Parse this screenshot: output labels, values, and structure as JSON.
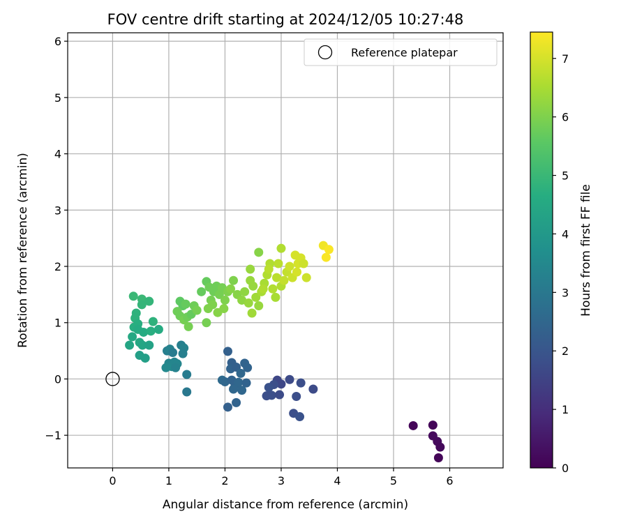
{
  "chart_data": {
    "type": "scatter",
    "title": "FOV centre drift starting at 2024/12/05 10:27:48",
    "xlabel": "Angular distance from reference (arcmin)",
    "ylabel": "Rotation from reference (arcmin)",
    "xlim": [
      -0.8,
      6.95
    ],
    "ylim": [
      -1.58,
      6.15
    ],
    "xticks": [
      0,
      1,
      2,
      3,
      4,
      5,
      6
    ],
    "yticks": [
      -1,
      0,
      1,
      2,
      3,
      4,
      5,
      6
    ],
    "xtick_labels": [
      "0",
      "1",
      "2",
      "3",
      "4",
      "5",
      "6"
    ],
    "ytick_labels": [
      "−1",
      "0",
      "1",
      "2",
      "3",
      "4",
      "5",
      "6"
    ],
    "grid": true,
    "legend": {
      "position": "top-right",
      "entries": [
        "Reference platepar"
      ]
    },
    "reference_point": {
      "x": 0,
      "y": 0,
      "label": "Reference platepar"
    },
    "colorbar": {
      "label": "Hours from first FF file",
      "colormap": "viridis",
      "range": [
        0,
        7.45
      ],
      "ticks": [
        0,
        1,
        2,
        3,
        4,
        5,
        6,
        7
      ],
      "tick_labels": [
        "0",
        "1",
        "2",
        "3",
        "4",
        "5",
        "6",
        "7"
      ]
    },
    "points": [
      {
        "x": 5.35,
        "y": -0.83,
        "c": 0.1
      },
      {
        "x": 5.7,
        "y": -0.82,
        "c": 0.1
      },
      {
        "x": 5.7,
        "y": -1.01,
        "c": 0.2
      },
      {
        "x": 5.78,
        "y": -1.11,
        "c": 0.2
      },
      {
        "x": 5.83,
        "y": -1.21,
        "c": 0.15
      },
      {
        "x": 5.8,
        "y": -1.4,
        "c": 0.1
      },
      {
        "x": 2.93,
        "y": -0.02,
        "c": 1.6
      },
      {
        "x": 3.0,
        "y": -0.09,
        "c": 1.6
      },
      {
        "x": 3.15,
        "y": -0.01,
        "c": 1.7
      },
      {
        "x": 3.35,
        "y": -0.07,
        "c": 1.8
      },
      {
        "x": 3.57,
        "y": -0.18,
        "c": 1.7
      },
      {
        "x": 2.87,
        "y": -0.1,
        "c": 1.8
      },
      {
        "x": 2.78,
        "y": -0.15,
        "c": 1.9
      },
      {
        "x": 2.74,
        "y": -0.3,
        "c": 1.8
      },
      {
        "x": 2.83,
        "y": -0.29,
        "c": 1.8
      },
      {
        "x": 2.97,
        "y": -0.28,
        "c": 1.7
      },
      {
        "x": 3.27,
        "y": -0.31,
        "c": 1.8
      },
      {
        "x": 3.22,
        "y": -0.61,
        "c": 1.8
      },
      {
        "x": 3.33,
        "y": -0.67,
        "c": 1.9
      },
      {
        "x": 2.05,
        "y": 0.49,
        "c": 2.3
      },
      {
        "x": 2.12,
        "y": 0.29,
        "c": 2.3
      },
      {
        "x": 2.1,
        "y": 0.18,
        "c": 2.4
      },
      {
        "x": 2.2,
        "y": 0.21,
        "c": 2.3
      },
      {
        "x": 2.28,
        "y": 0.1,
        "c": 2.5
      },
      {
        "x": 2.35,
        "y": 0.28,
        "c": 2.4
      },
      {
        "x": 2.4,
        "y": 0.2,
        "c": 2.4
      },
      {
        "x": 1.95,
        "y": -0.02,
        "c": 2.6
      },
      {
        "x": 2.0,
        "y": -0.05,
        "c": 2.5
      },
      {
        "x": 2.12,
        "y": -0.02,
        "c": 2.4
      },
      {
        "x": 2.18,
        "y": -0.1,
        "c": 2.4
      },
      {
        "x": 2.24,
        "y": -0.06,
        "c": 2.5
      },
      {
        "x": 2.3,
        "y": -0.2,
        "c": 2.5
      },
      {
        "x": 2.38,
        "y": -0.07,
        "c": 2.4
      },
      {
        "x": 2.15,
        "y": -0.18,
        "c": 2.5
      },
      {
        "x": 2.2,
        "y": -0.42,
        "c": 2.4
      },
      {
        "x": 2.05,
        "y": -0.5,
        "c": 2.3
      },
      {
        "x": 0.97,
        "y": 0.5,
        "c": 3.2
      },
      {
        "x": 1.02,
        "y": 0.53,
        "c": 3.3
      },
      {
        "x": 1.07,
        "y": 0.47,
        "c": 3.1
      },
      {
        "x": 1.0,
        "y": 0.28,
        "c": 3.4
      },
      {
        "x": 1.05,
        "y": 0.22,
        "c": 3.5
      },
      {
        "x": 1.1,
        "y": 0.3,
        "c": 3.4
      },
      {
        "x": 1.15,
        "y": 0.27,
        "c": 3.4
      },
      {
        "x": 0.95,
        "y": 0.2,
        "c": 3.5
      },
      {
        "x": 1.12,
        "y": 0.2,
        "c": 3.3
      },
      {
        "x": 1.22,
        "y": 0.6,
        "c": 3.2
      },
      {
        "x": 1.27,
        "y": 0.55,
        "c": 3.3
      },
      {
        "x": 1.25,
        "y": 0.45,
        "c": 3.2
      },
      {
        "x": 1.32,
        "y": 0.08,
        "c": 3.1
      },
      {
        "x": 1.32,
        "y": -0.23,
        "c": 3.0
      },
      {
        "x": 0.37,
        "y": 1.47,
        "c": 5.0
      },
      {
        "x": 0.52,
        "y": 1.42,
        "c": 5.0
      },
      {
        "x": 0.52,
        "y": 1.32,
        "c": 4.9
      },
      {
        "x": 0.65,
        "y": 1.38,
        "c": 4.9
      },
      {
        "x": 0.42,
        "y": 1.17,
        "c": 4.8
      },
      {
        "x": 0.4,
        "y": 1.08,
        "c": 4.8
      },
      {
        "x": 0.45,
        "y": 0.98,
        "c": 4.7
      },
      {
        "x": 0.38,
        "y": 0.92,
        "c": 4.7
      },
      {
        "x": 0.45,
        "y": 0.88,
        "c": 4.6
      },
      {
        "x": 0.55,
        "y": 0.83,
        "c": 4.6
      },
      {
        "x": 0.68,
        "y": 0.85,
        "c": 4.7
      },
      {
        "x": 0.72,
        "y": 1.02,
        "c": 4.8
      },
      {
        "x": 0.82,
        "y": 0.88,
        "c": 4.6
      },
      {
        "x": 0.35,
        "y": 0.75,
        "c": 4.5
      },
      {
        "x": 0.3,
        "y": 0.6,
        "c": 4.4
      },
      {
        "x": 0.48,
        "y": 0.65,
        "c": 4.5
      },
      {
        "x": 0.53,
        "y": 0.6,
        "c": 4.4
      },
      {
        "x": 0.65,
        "y": 0.6,
        "c": 4.3
      },
      {
        "x": 0.48,
        "y": 0.42,
        "c": 4.2
      },
      {
        "x": 0.58,
        "y": 0.37,
        "c": 4.2
      },
      {
        "x": 1.2,
        "y": 1.38,
        "c": 5.6
      },
      {
        "x": 1.25,
        "y": 1.3,
        "c": 5.6
      },
      {
        "x": 1.3,
        "y": 1.33,
        "c": 5.7
      },
      {
        "x": 1.15,
        "y": 1.2,
        "c": 5.8
      },
      {
        "x": 1.2,
        "y": 1.12,
        "c": 5.8
      },
      {
        "x": 1.27,
        "y": 1.05,
        "c": 5.9
      },
      {
        "x": 1.33,
        "y": 1.1,
        "c": 5.8
      },
      {
        "x": 1.4,
        "y": 1.15,
        "c": 5.7
      },
      {
        "x": 1.45,
        "y": 1.3,
        "c": 5.8
      },
      {
        "x": 1.5,
        "y": 1.22,
        "c": 5.9
      },
      {
        "x": 1.58,
        "y": 1.55,
        "c": 5.7
      },
      {
        "x": 1.67,
        "y": 1.73,
        "c": 5.7
      },
      {
        "x": 1.72,
        "y": 1.63,
        "c": 5.8
      },
      {
        "x": 1.75,
        "y": 1.4,
        "c": 5.9
      },
      {
        "x": 1.8,
        "y": 1.55,
        "c": 5.8
      },
      {
        "x": 1.85,
        "y": 1.65,
        "c": 5.8
      },
      {
        "x": 1.9,
        "y": 1.5,
        "c": 5.9
      },
      {
        "x": 1.78,
        "y": 1.32,
        "c": 6.0
      },
      {
        "x": 1.7,
        "y": 1.25,
        "c": 6.0
      },
      {
        "x": 1.67,
        "y": 1.0,
        "c": 5.9
      },
      {
        "x": 1.35,
        "y": 0.93,
        "c": 5.9
      },
      {
        "x": 1.95,
        "y": 1.62,
        "c": 5.9
      },
      {
        "x": 2.0,
        "y": 1.4,
        "c": 6.0
      },
      {
        "x": 2.05,
        "y": 1.55,
        "c": 6.0
      },
      {
        "x": 1.98,
        "y": 1.25,
        "c": 6.1
      },
      {
        "x": 1.87,
        "y": 1.18,
        "c": 6.1
      },
      {
        "x": 2.1,
        "y": 1.6,
        "c": 6.1
      },
      {
        "x": 2.15,
        "y": 1.75,
        "c": 6.0
      },
      {
        "x": 2.22,
        "y": 1.5,
        "c": 6.1
      },
      {
        "x": 2.3,
        "y": 1.4,
        "c": 6.2
      },
      {
        "x": 2.35,
        "y": 1.55,
        "c": 6.2
      },
      {
        "x": 2.45,
        "y": 1.95,
        "c": 6.3
      },
      {
        "x": 2.6,
        "y": 2.25,
        "c": 6.1
      },
      {
        "x": 2.45,
        "y": 1.75,
        "c": 6.3
      },
      {
        "x": 2.5,
        "y": 1.65,
        "c": 6.3
      },
      {
        "x": 2.55,
        "y": 1.45,
        "c": 6.4
      },
      {
        "x": 2.6,
        "y": 1.3,
        "c": 6.3
      },
      {
        "x": 2.48,
        "y": 1.17,
        "c": 6.4
      },
      {
        "x": 2.42,
        "y": 1.35,
        "c": 6.3
      },
      {
        "x": 2.65,
        "y": 1.55,
        "c": 6.5
      },
      {
        "x": 2.7,
        "y": 1.7,
        "c": 6.5
      },
      {
        "x": 2.75,
        "y": 1.85,
        "c": 6.6
      },
      {
        "x": 2.8,
        "y": 2.05,
        "c": 6.6
      },
      {
        "x": 2.85,
        "y": 1.6,
        "c": 6.6
      },
      {
        "x": 2.9,
        "y": 1.45,
        "c": 6.5
      },
      {
        "x": 2.92,
        "y": 1.8,
        "c": 6.7
      },
      {
        "x": 2.95,
        "y": 2.05,
        "c": 6.7
      },
      {
        "x": 3.0,
        "y": 2.32,
        "c": 6.6
      },
      {
        "x": 3.0,
        "y": 1.65,
        "c": 6.6
      },
      {
        "x": 3.05,
        "y": 1.75,
        "c": 6.8
      },
      {
        "x": 3.1,
        "y": 1.9,
        "c": 6.8
      },
      {
        "x": 3.15,
        "y": 2.0,
        "c": 6.9
      },
      {
        "x": 3.2,
        "y": 1.8,
        "c": 6.9
      },
      {
        "x": 3.25,
        "y": 2.2,
        "c": 7.0
      },
      {
        "x": 3.3,
        "y": 2.05,
        "c": 7.0
      },
      {
        "x": 3.35,
        "y": 2.15,
        "c": 7.0
      },
      {
        "x": 3.4,
        "y": 2.05,
        "c": 6.9
      },
      {
        "x": 3.45,
        "y": 1.8,
        "c": 6.9
      },
      {
        "x": 3.28,
        "y": 1.9,
        "c": 7.0
      },
      {
        "x": 2.78,
        "y": 1.95,
        "c": 6.7
      },
      {
        "x": 2.68,
        "y": 1.6,
        "c": 6.6
      },
      {
        "x": 3.75,
        "y": 2.37,
        "c": 7.3
      },
      {
        "x": 3.85,
        "y": 2.3,
        "c": 7.4
      },
      {
        "x": 3.8,
        "y": 2.16,
        "c": 7.4
      }
    ]
  }
}
